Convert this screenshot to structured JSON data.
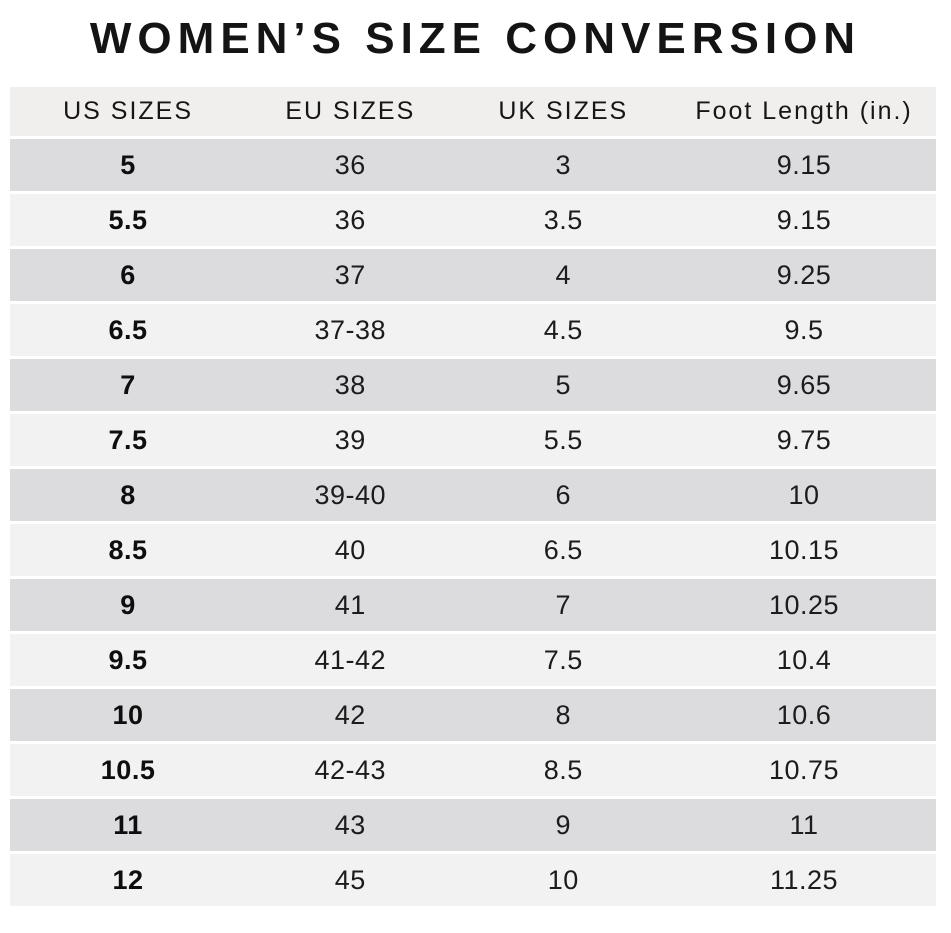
{
  "title": "WOMEN’S SIZE CONVERSION",
  "colors": {
    "background": "#ffffff",
    "header_bg": "#f0efee",
    "row_dark": "#dcdcde",
    "row_light": "#f2f2f2",
    "text": "#1c1c1c"
  },
  "chart_data": {
    "type": "table",
    "title": "WOMEN’S SIZE CONVERSION",
    "columns": [
      "US SIZES",
      "EU SIZES",
      "UK SIZES",
      "Foot Length (in.)"
    ],
    "column_keys": [
      "us-size",
      "eu-size",
      "uk-size",
      "foot-length"
    ],
    "rows": [
      [
        "5",
        "36",
        "3",
        "9.15"
      ],
      [
        "5.5",
        "36",
        "3.5",
        "9.15"
      ],
      [
        "6",
        "37",
        "4",
        "9.25"
      ],
      [
        "6.5",
        "37-38",
        "4.5",
        "9.5"
      ],
      [
        "7",
        "38",
        "5",
        "9.65"
      ],
      [
        "7.5",
        "39",
        "5.5",
        "9.75"
      ],
      [
        "8",
        "39-40",
        "6",
        "10"
      ],
      [
        "8.5",
        "40",
        "6.5",
        "10.15"
      ],
      [
        "9",
        "41",
        "7",
        "10.25"
      ],
      [
        "9.5",
        "41-42",
        "7.5",
        "10.4"
      ],
      [
        "10",
        "42",
        "8",
        "10.6"
      ],
      [
        "10.5",
        "42-43",
        "8.5",
        "10.75"
      ],
      [
        "11",
        "43",
        "9",
        "11"
      ],
      [
        "12",
        "45",
        "10",
        "11.25"
      ]
    ],
    "layout": {
      "row_striping": "alternating dark/light gray bands separated by thin white gaps",
      "first_column_bold": true,
      "alignment": "center",
      "legend_position": "none",
      "grid": "off"
    }
  }
}
